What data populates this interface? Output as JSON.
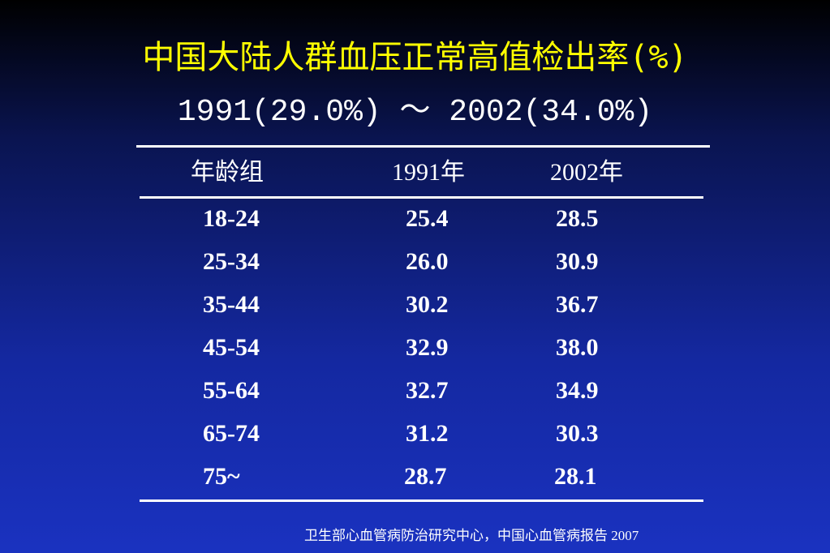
{
  "header": {
    "title": "中国大陆人群血压正常高值检出率(%)",
    "subtitle": "1991(29.0%) ～ 2002(34.0%)"
  },
  "table": {
    "columns": [
      "年龄组",
      "1991年",
      "2002年"
    ],
    "rows": [
      [
        "18-24",
        "25.4",
        "28.5"
      ],
      [
        "25-34",
        "26.0",
        "30.9"
      ],
      [
        "35-44",
        "30.2",
        "36.7"
      ],
      [
        "45-54",
        "32.9",
        "38.0"
      ],
      [
        "55-64",
        "32.7",
        "34.9"
      ],
      [
        "65-74",
        "31.2",
        "30.3"
      ],
      [
        "75~",
        "28.7",
        "28.1"
      ]
    ]
  },
  "footer": {
    "source": "卫生部心血管病防治研究中心，中国心血管病报告 2007"
  }
}
